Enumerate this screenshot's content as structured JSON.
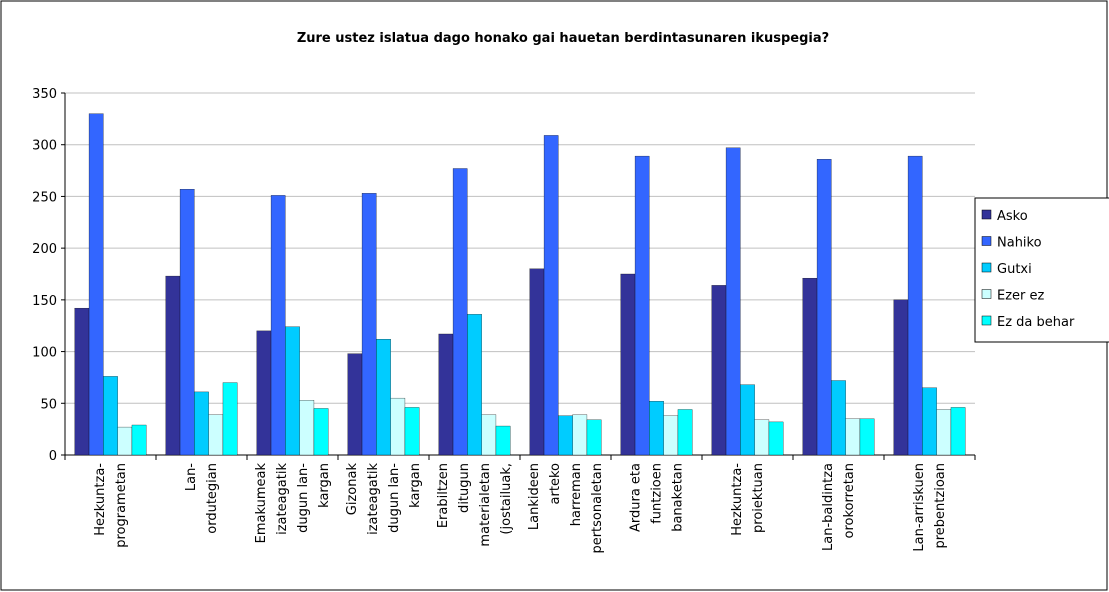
{
  "chart_data": {
    "type": "bar",
    "title": "Zure ustez islatua dago honako gai hauetan berdintasunaren ikuspegia?",
    "categories": [
      "Hezkuntza-\nprogrametan",
      "Lan-\nordutegian",
      "Emakumeak\nizateagatik\ndugun lan-\nkargan",
      "Gizonak\nizateagatik\ndugun lan-\nkargan",
      "Erabiltzen\nditugun\nmaterialetan\n(jostailuak,",
      "Lankideen\narteko\nharreman\npertsonaletan",
      "Ardura eta\nfuntzioen\nbanaketan",
      "Hezkuntza-\nproiektuan",
      "Lan-baldintza\norokorretan",
      "Lan-arriskuen\nprebentzioan"
    ],
    "series": [
      {
        "name": "Asko",
        "color": "#333399",
        "values": [
          142,
          173,
          120,
          98,
          117,
          180,
          175,
          164,
          171,
          150
        ]
      },
      {
        "name": "Nahiko",
        "color": "#3366ff",
        "values": [
          330,
          257,
          251,
          253,
          277,
          309,
          289,
          297,
          286,
          289
        ]
      },
      {
        "name": "Gutxi",
        "color": "#00ccff",
        "values": [
          76,
          61,
          124,
          112,
          136,
          38,
          52,
          68,
          72,
          65
        ]
      },
      {
        "name": "Ezer ez",
        "color": "#ccffff",
        "values": [
          27,
          39,
          53,
          55,
          39,
          39,
          38,
          34,
          35,
          44
        ]
      },
      {
        "name": "Ez da behar",
        "color": "#00ffff",
        "values": [
          29,
          70,
          45,
          46,
          28,
          34,
          44,
          32,
          35,
          46
        ]
      }
    ],
    "ylim": [
      0,
      350
    ],
    "yticks": [
      0,
      50,
      100,
      150,
      200,
      250,
      300,
      350
    ],
    "grid": true,
    "legend": "right"
  }
}
